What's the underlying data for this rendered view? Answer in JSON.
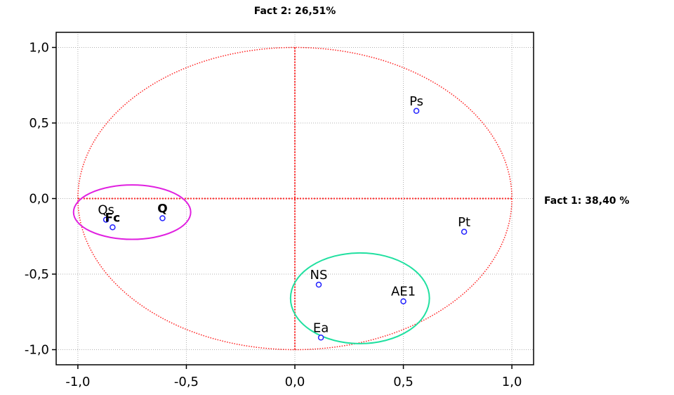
{
  "chart_data": {
    "type": "scatter",
    "title": "",
    "xlabel": "Fact 1: 38,40 %",
    "ylabel": "Fact 2: 26,51%",
    "xlim": [
      -1.1,
      1.1
    ],
    "ylim": [
      -1.1,
      1.1
    ],
    "grid": true,
    "x_ticks": [
      "-1,0",
      "-0,5",
      "0,0",
      "0,5",
      "1,0"
    ],
    "y_ticks": [
      "1,0",
      "0,5",
      "0,0",
      "-0,5",
      "-1,0"
    ],
    "x_tick_values": [
      -1.0,
      -0.5,
      0.0,
      0.5,
      1.0
    ],
    "y_tick_values": [
      1.0,
      0.5,
      0.0,
      -0.5,
      -1.0
    ],
    "points": [
      {
        "label": "Ps",
        "x": 0.56,
        "y": 0.58,
        "bold": false
      },
      {
        "label": "Pt",
        "x": 0.78,
        "y": -0.22,
        "bold": false
      },
      {
        "label": "NS",
        "x": 0.11,
        "y": -0.57,
        "bold": false
      },
      {
        "label": "AE1",
        "x": 0.5,
        "y": -0.68,
        "bold": false
      },
      {
        "label": "Ea",
        "x": 0.12,
        "y": -0.92,
        "bold": false
      },
      {
        "label": "Q",
        "x": -0.61,
        "y": -0.13,
        "bold": true
      },
      {
        "label": "Qs",
        "x": -0.87,
        "y": -0.14,
        "bold": false
      },
      {
        "label": "Fc",
        "x": -0.84,
        "y": -0.19,
        "bold": true
      }
    ],
    "unit_circle": {
      "center": [
        0,
        0
      ],
      "radius": 1.0,
      "color": "#ff2020"
    },
    "group_ellipses": [
      {
        "center": [
          -0.75,
          -0.09
        ],
        "rx": 0.27,
        "ry": 0.18,
        "color": "#e020e0"
      },
      {
        "center": [
          0.3,
          -0.66
        ],
        "rx": 0.32,
        "ry": 0.3,
        "color": "#20e0a0"
      }
    ],
    "colors": {
      "point": "#2020ff",
      "axes": "#ff2020",
      "grid": "#b0b0b0"
    }
  }
}
